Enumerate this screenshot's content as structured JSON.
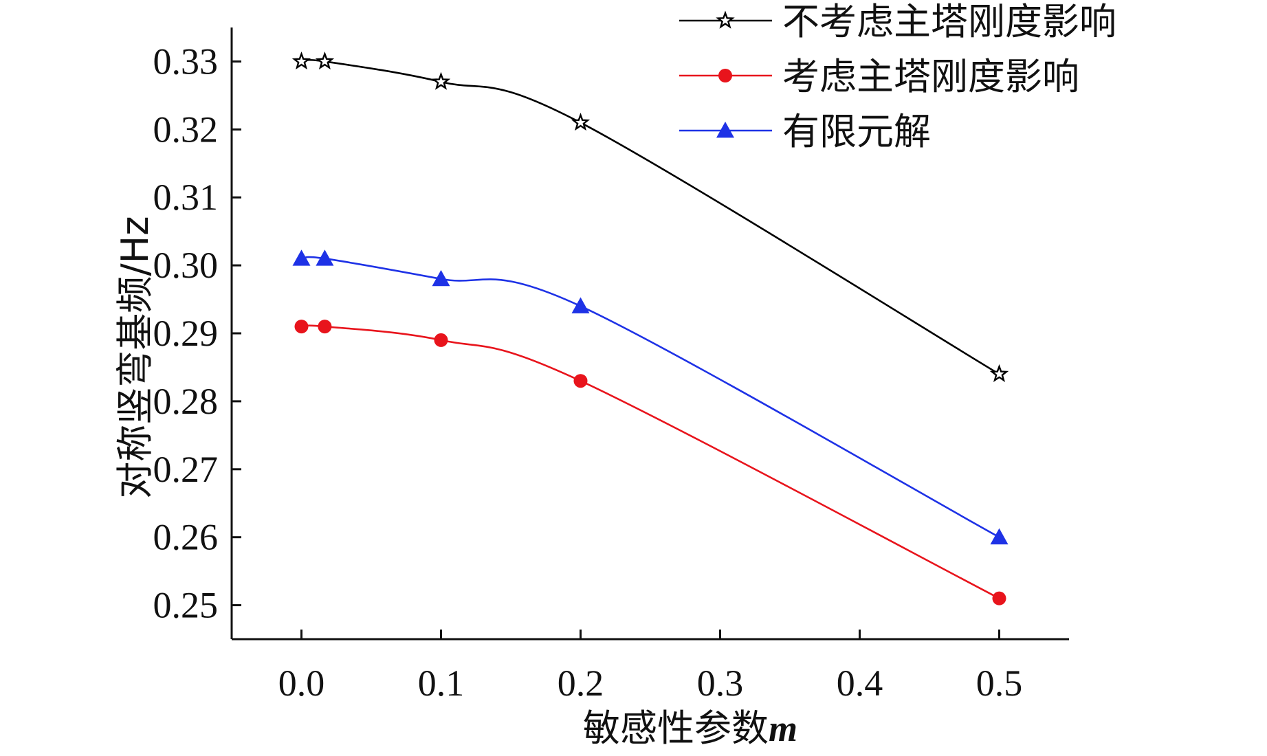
{
  "chart_data": {
    "type": "line",
    "xlabel": "敏感性参数",
    "xlabel_var": "m",
    "ylabel": "对称竖弯基频/Hz",
    "xlim": [
      -0.05,
      0.55
    ],
    "ylim": [
      0.245,
      0.335
    ],
    "xticks": [
      0.0,
      0.1,
      0.2,
      0.3,
      0.4,
      0.5
    ],
    "xtick_labels": [
      "0.0",
      "0.1",
      "0.2",
      "0.3",
      "0.4",
      "0.5"
    ],
    "yticks": [
      0.25,
      0.26,
      0.27,
      0.28,
      0.29,
      0.3,
      0.31,
      0.32,
      0.33
    ],
    "ytick_labels": [
      "0.25",
      "0.26",
      "0.27",
      "0.28",
      "0.29",
      "0.30",
      "0.31",
      "0.32",
      "0.33"
    ],
    "legend_position": "top-right",
    "x": [
      0.0,
      0.0167,
      0.1,
      0.2,
      0.5
    ],
    "series": [
      {
        "name": "不考虑主塔刚度影响",
        "color": "#000000",
        "marker": "star",
        "values": [
          0.33,
          0.33,
          0.327,
          0.321,
          0.284
        ]
      },
      {
        "name": "考虑主塔刚度影响",
        "color": "#e8141c",
        "marker": "circle",
        "values": [
          0.291,
          0.291,
          0.289,
          0.283,
          0.251
        ]
      },
      {
        "name": "有限元解",
        "color": "#1e32e6",
        "marker": "triangle",
        "values": [
          0.301,
          0.301,
          0.298,
          0.294,
          0.26
        ]
      }
    ]
  }
}
